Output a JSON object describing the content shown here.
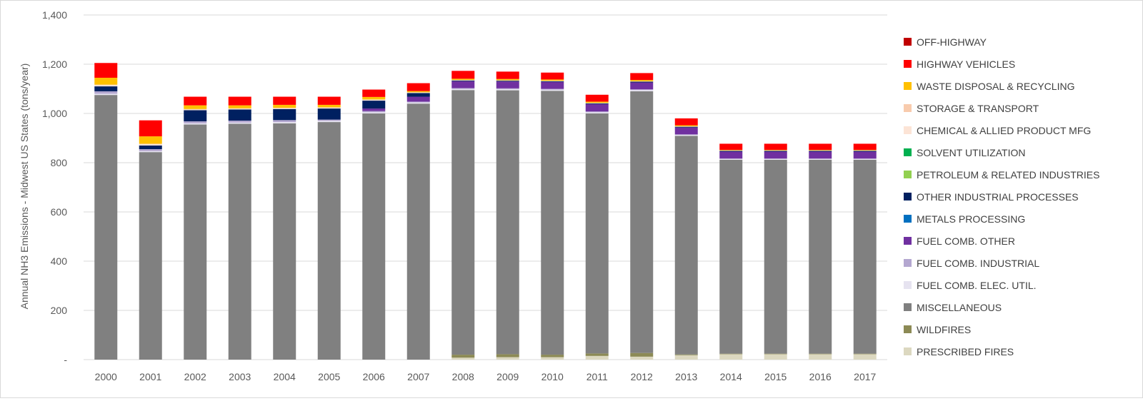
{
  "chart_data": {
    "type": "bar",
    "stacked": true,
    "title": "",
    "xlabel": "",
    "ylabel": "Annual NH3 Emissions - Midwest US States  (tons/year)",
    "ylim": [
      0,
      1400
    ],
    "yticks": [
      0,
      200,
      400,
      600,
      800,
      1000,
      1200,
      1400
    ],
    "ytick_labels": [
      "-",
      "200",
      "400",
      "600",
      "800",
      "1,000",
      "1,200",
      "1,400"
    ],
    "grid": true,
    "legend_position": "right",
    "categories": [
      "2000",
      "2001",
      "2002",
      "2003",
      "2004",
      "2005",
      "2006",
      "2007",
      "2008",
      "2009",
      "2010",
      "2011",
      "2012",
      "2013",
      "2014",
      "2015",
      "2016",
      "2017"
    ],
    "series": [
      {
        "name": "PRESCRIBED FIRES",
        "color": "#dcd8c0",
        "values": [
          0,
          0,
          0,
          0,
          0,
          0,
          0,
          0,
          8,
          10,
          10,
          15,
          12,
          18,
          22,
          22,
          22,
          22
        ]
      },
      {
        "name": "WILDFIRES",
        "color": "#8c8a55",
        "values": [
          0,
          0,
          0,
          0,
          0,
          0,
          0,
          0,
          12,
          12,
          10,
          10,
          15,
          3,
          2,
          2,
          2,
          2
        ]
      },
      {
        "name": "MISCELLANEOUS",
        "color": "#808080",
        "values": [
          1075,
          843,
          955,
          958,
          960,
          965,
          1000,
          1040,
          1075,
          1072,
          1072,
          975,
          1063,
          888,
          788,
          788,
          788,
          788
        ]
      },
      {
        "name": "FUEL COMB. ELEC. UTIL.",
        "color": "#e6e3f0",
        "values": [
          5,
          4,
          5,
          5,
          5,
          5,
          5,
          5,
          5,
          5,
          5,
          5,
          5,
          4,
          3,
          3,
          3,
          3
        ]
      },
      {
        "name": "FUEL COMB. INDUSTRIAL",
        "color": "#b4a7d0",
        "values": [
          10,
          8,
          8,
          8,
          8,
          5,
          5,
          3,
          3,
          3,
          3,
          3,
          3,
          2,
          2,
          2,
          2,
          2
        ]
      },
      {
        "name": "FUEL COMB. OTHER",
        "color": "#7030a0",
        "values": [
          0,
          0,
          0,
          0,
          0,
          0,
          10,
          20,
          28,
          28,
          28,
          30,
          28,
          28,
          28,
          28,
          28,
          28
        ]
      },
      {
        "name": "METALS PROCESSING",
        "color": "#0070c0",
        "values": [
          0,
          0,
          0,
          0,
          0,
          0,
          0,
          0,
          0,
          0,
          0,
          0,
          0,
          0,
          0,
          0,
          0,
          0
        ]
      },
      {
        "name": "OTHER INDUSTRIAL PROCESSES",
        "color": "#002060",
        "values": [
          20,
          15,
          45,
          45,
          45,
          45,
          32,
          15,
          3,
          3,
          3,
          3,
          3,
          3,
          3,
          3,
          3,
          3
        ]
      },
      {
        "name": "PETROLEUM & RELATED INDUSTRIES",
        "color": "#92d050",
        "values": [
          0,
          0,
          0,
          0,
          0,
          0,
          0,
          0,
          0,
          0,
          0,
          0,
          0,
          0,
          0,
          0,
          0,
          0
        ]
      },
      {
        "name": "SOLVENT UTILIZATION",
        "color": "#00b050",
        "values": [
          0,
          0,
          0,
          0,
          0,
          0,
          0,
          0,
          0,
          0,
          0,
          0,
          0,
          0,
          0,
          0,
          0,
          0
        ]
      },
      {
        "name": "CHEMICAL & ALLIED PRODUCT MFG",
        "color": "#fce4d6",
        "values": [
          5,
          5,
          3,
          3,
          3,
          3,
          3,
          2,
          1,
          1,
          1,
          1,
          1,
          1,
          1,
          1,
          1,
          1
        ]
      },
      {
        "name": "STORAGE & TRANSPORT",
        "color": "#f8cbad",
        "values": [
          2,
          2,
          2,
          2,
          2,
          2,
          2,
          1,
          1,
          1,
          1,
          1,
          1,
          1,
          1,
          1,
          1,
          1
        ]
      },
      {
        "name": "WASTE DISPOSAL & RECYCLING",
        "color": "#ffc000",
        "values": [
          28,
          30,
          15,
          12,
          12,
          10,
          10,
          5,
          5,
          5,
          5,
          5,
          5,
          4,
          2,
          2,
          2,
          2
        ]
      },
      {
        "name": "HIGHWAY VEHICLES",
        "color": "#ff0000",
        "values": [
          60,
          65,
          35,
          35,
          33,
          33,
          30,
          32,
          32,
          30,
          28,
          28,
          28,
          28,
          25,
          25,
          25,
          25
        ]
      },
      {
        "name": "OFF-HIGHWAY",
        "color": "#c00000",
        "values": [
          0,
          0,
          0,
          0,
          0,
          0,
          0,
          0,
          0,
          0,
          0,
          0,
          0,
          0,
          0,
          0,
          0,
          0
        ]
      }
    ],
    "legend_order": [
      "OFF-HIGHWAY",
      "HIGHWAY VEHICLES",
      "WASTE DISPOSAL & RECYCLING",
      "STORAGE & TRANSPORT",
      "CHEMICAL & ALLIED PRODUCT MFG",
      "SOLVENT UTILIZATION",
      "PETROLEUM & RELATED INDUSTRIES",
      "OTHER INDUSTRIAL PROCESSES",
      "METALS PROCESSING",
      "FUEL COMB. OTHER",
      "FUEL COMB. INDUSTRIAL",
      "FUEL COMB. ELEC. UTIL.",
      "MISCELLANEOUS",
      "WILDFIRES",
      "PRESCRIBED FIRES"
    ],
    "colors": {
      "grid": "#d9d9d9",
      "axis_text": "#595959",
      "legend_text": "#404040"
    }
  }
}
